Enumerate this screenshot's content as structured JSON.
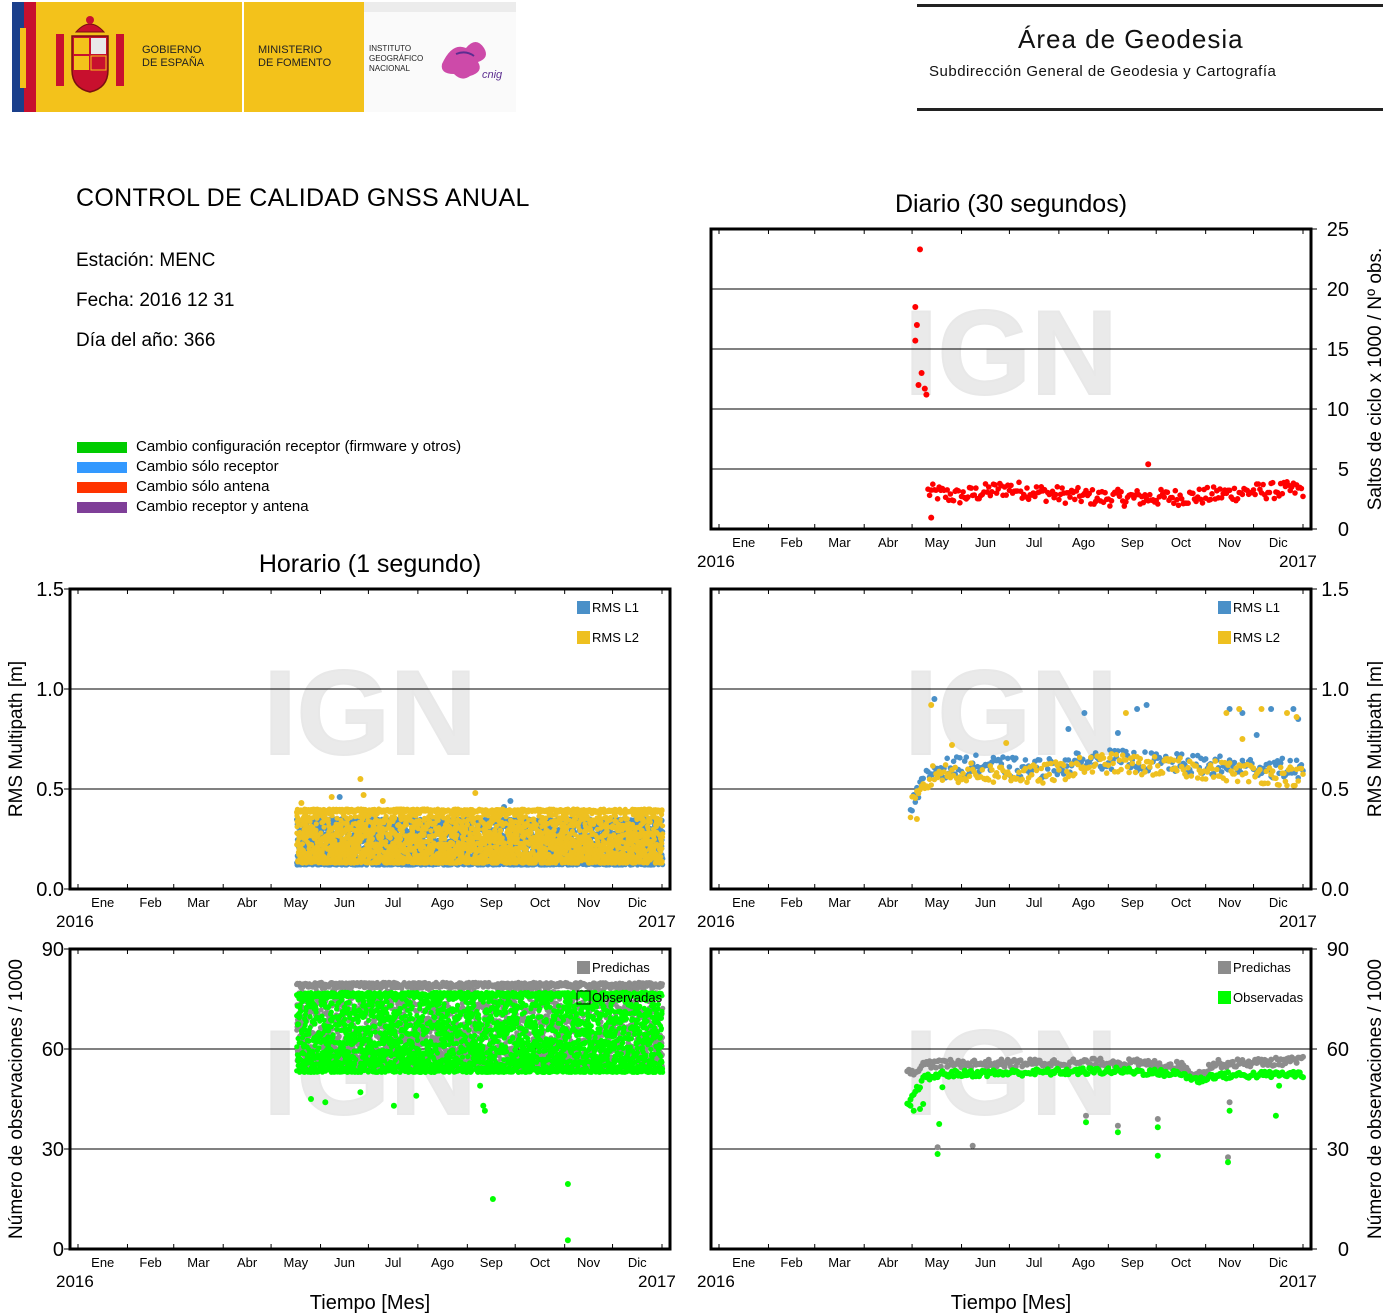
{
  "header": {
    "gobierno": "GOBIERNO\nDE ESPAÑA",
    "ministerio": "MINISTERIO\nDE FOMENTO",
    "instituto": "INSTITUTO\nGEOGRÁFICO\nNACIONAL",
    "cnig_logo": "cnig",
    "area_title": "Área de Geodesia",
    "area_subtitle": "Subdirección General de Geodesia y Cartografía"
  },
  "report": {
    "title": "CONTROL DE CALIDAD GNSS ANUAL",
    "station": "Estación: MENC",
    "date": "Fecha: 2016 12 31",
    "doy": "Día del año: 366"
  },
  "legend": [
    {
      "label": "Cambio configuración receptor (firmware y otros)",
      "color": "#00cc00"
    },
    {
      "label": "Cambio sólo receptor",
      "color": "#3399ff"
    },
    {
      "label": "Cambio sólo antena",
      "color": "#ff3300"
    },
    {
      "label": "Cambio receptor y antena",
      "color": "#7f3f98"
    }
  ],
  "watermark": "IGN",
  "colors": {
    "cycle_slips": "#ff0000",
    "rms_l1": "#4a90c8",
    "rms_l2": "#eec020",
    "predichas": "#8c8c8c",
    "observadas": "#00ff00"
  },
  "months": [
    "Ene",
    "Feb",
    "Mar",
    "Abr",
    "May",
    "Jun",
    "Jul",
    "Ago",
    "Sep",
    "Oct",
    "Nov",
    "Dic"
  ],
  "year_start": "2016",
  "year_end": "2017",
  "chart_data": [
    {
      "id": "daily_slips",
      "type": "scatter",
      "title": "Diario (30 segundos)",
      "ylabel": "Saltos de ciclo x 1000 / Nº obs.",
      "y_axis_side": "right",
      "ylim": [
        0,
        25
      ],
      "yticks": [
        "0",
        "5",
        "10",
        "15",
        "20",
        "25"
      ],
      "x_range_days": [
        0,
        366
      ],
      "series": [
        {
          "color_key": "cycle_slips",
          "outliers": [
            [
              126,
              23.3
            ],
            [
              123,
              18.5
            ],
            [
              124,
              17.0
            ],
            [
              123,
              15.7
            ],
            [
              127,
              13.0
            ],
            [
              125,
              12.0
            ],
            [
              129,
              11.7
            ],
            [
              130,
              11.2
            ],
            [
              133,
              0.95
            ],
            [
              269,
              5.4
            ]
          ],
          "baseline": [
            [
              131,
              3.1
            ],
            [
              150,
              2.7
            ],
            [
              180,
              3.4
            ],
            [
              210,
              2.9
            ],
            [
              240,
              2.6
            ],
            [
              270,
              2.6
            ],
            [
              300,
              2.7
            ],
            [
              330,
              3.1
            ],
            [
              366,
              3.3
            ]
          ],
          "spread": 0.7,
          "start": 131,
          "end": 366
        }
      ]
    },
    {
      "id": "hourly_rms",
      "type": "scatter",
      "title": "Horario (1 segundo)",
      "ylabel": "RMS Multipath [m]",
      "y_axis_side": "left",
      "ylim": [
        0,
        1.5
      ],
      "yticks": [
        "0.0",
        "0.5",
        "1.0",
        "1.5"
      ],
      "x_range_days": [
        0,
        366
      ],
      "series": [
        {
          "name": "RMS L1",
          "color_key": "rms_l1",
          "start": 137,
          "end": 366,
          "range": [
            0.12,
            0.35
          ],
          "outliers": [
            [
              164,
              0.46
            ],
            [
              271,
              0.44
            ],
            [
              267,
              0.41
            ]
          ]
        },
        {
          "name": "RMS L2",
          "color_key": "rms_l2",
          "start": 137,
          "end": 366,
          "range": [
            0.13,
            0.4
          ],
          "outliers": [
            [
              177,
              0.55
            ],
            [
              179,
              0.47
            ],
            [
              159,
              0.46
            ],
            [
              249,
              0.48
            ],
            [
              140,
              0.43
            ],
            [
              191,
              0.44
            ]
          ]
        }
      ]
    },
    {
      "id": "daily_rms",
      "type": "scatter",
      "ylabel": "RMS Multipath [m]",
      "y_axis_side": "right",
      "ylim": [
        0,
        1.5
      ],
      "yticks": [
        "0.0",
        "0.5",
        "1.0",
        "1.5"
      ],
      "x_range_days": [
        0,
        366
      ],
      "series": [
        {
          "name": "RMS L1",
          "color_key": "rms_l1",
          "baseline": [
            [
              120,
              0.43
            ],
            [
              135,
              0.6
            ],
            [
              160,
              0.62
            ],
            [
              200,
              0.6
            ],
            [
              240,
              0.65
            ],
            [
              260,
              0.64
            ],
            [
              300,
              0.62
            ],
            [
              366,
              0.6
            ]
          ],
          "spread": 0.05,
          "start": 120,
          "end": 366,
          "outliers": [
            [
              135,
              0.95
            ],
            [
              219,
              0.8
            ],
            [
              229,
              0.88
            ],
            [
              250,
              0.78
            ],
            [
              262,
              0.9
            ],
            [
              268,
              0.92
            ],
            [
              320,
              0.9
            ],
            [
              328,
              0.88
            ],
            [
              346,
              0.9
            ],
            [
              360,
              0.9
            ],
            [
              363,
              0.85
            ],
            [
              337,
              0.77
            ]
          ]
        },
        {
          "name": "RMS L2",
          "color_key": "rms_l2",
          "baseline": [
            [
              120,
              0.4
            ],
            [
              135,
              0.58
            ],
            [
              160,
              0.58
            ],
            [
              200,
              0.57
            ],
            [
              240,
              0.63
            ],
            [
              260,
              0.62
            ],
            [
              300,
              0.6
            ],
            [
              366,
              0.56
            ]
          ],
          "spread": 0.05,
          "start": 120,
          "end": 366,
          "outliers": [
            [
              133,
              0.92
            ],
            [
              124,
              0.35
            ],
            [
              146,
              0.72
            ],
            [
              255,
              0.88
            ],
            [
              318,
              0.88
            ],
            [
              326,
              0.9
            ],
            [
              340,
              0.9
            ],
            [
              356,
              0.88
            ],
            [
              362,
              0.86
            ],
            [
              180,
              0.73
            ],
            [
              328,
              0.75
            ]
          ]
        }
      ]
    },
    {
      "id": "hourly_obs",
      "type": "scatter",
      "ylabel": "Número de observaciones / 1000",
      "xlabel": "Tiempo [Mes]",
      "y_axis_side": "left",
      "ylim": [
        0,
        90
      ],
      "yticks": [
        "0",
        "30",
        "60",
        "90"
      ],
      "x_range_days": [
        0,
        366
      ],
      "series": [
        {
          "name": "Predichas",
          "color_key": "predichas",
          "start": 137,
          "end": 366,
          "range": [
            54,
            80
          ]
        },
        {
          "name": "Observadas",
          "color_key": "observadas",
          "start": 137,
          "end": 366,
          "range": [
            53,
            77
          ],
          "outliers": [
            [
              307,
              19.5
            ],
            [
              307,
              2.6
            ],
            [
              260,
              15
            ],
            [
              255,
              41.5
            ],
            [
              254,
              43
            ],
            [
              146,
              45
            ],
            [
              155,
              44
            ],
            [
              177,
              47
            ],
            [
              198,
              43
            ],
            [
              212,
              46
            ],
            [
              252,
              49
            ]
          ]
        }
      ]
    },
    {
      "id": "daily_obs",
      "type": "scatter",
      "ylabel": "Número de observaciones / 1000",
      "xlabel": "Tiempo [Mes]",
      "y_axis_side": "right",
      "ylim": [
        0,
        90
      ],
      "yticks": [
        "0",
        "30",
        "60",
        "90"
      ],
      "x_range_days": [
        0,
        366
      ],
      "series": [
        {
          "name": "Predichas",
          "color_key": "predichas",
          "baseline": [
            [
              118,
              52.5
            ],
            [
              130,
              55.5
            ],
            [
              200,
              55.8
            ],
            [
              250,
              56
            ],
            [
              290,
              55
            ],
            [
              300,
              52
            ],
            [
              310,
              55.5
            ],
            [
              366,
              56.5
            ]
          ],
          "spread": 1.2,
          "start": 118,
          "end": 366,
          "outliers": [
            [
              137,
              30.5
            ],
            [
              159,
              31
            ],
            [
              230,
              40
            ],
            [
              250,
              37
            ],
            [
              275,
              39
            ],
            [
              320,
              44
            ],
            [
              319,
              27.5
            ]
          ]
        },
        {
          "name": "Observadas",
          "color_key": "observadas",
          "baseline": [
            [
              118,
              43
            ],
            [
              128,
              51
            ],
            [
              140,
              52.5
            ],
            [
              200,
              53
            ],
            [
              250,
              53.5
            ],
            [
              290,
              52.5
            ],
            [
              300,
              50.5
            ],
            [
              310,
              52
            ],
            [
              366,
              52.5
            ]
          ],
          "spread": 1.0,
          "start": 118,
          "end": 366,
          "outliers": [
            [
              120,
              43
            ],
            [
              122,
              41.5
            ],
            [
              126,
              42
            ],
            [
              128,
              43.5
            ],
            [
              137,
              28.5
            ],
            [
              138,
              37.5
            ],
            [
              140,
              48.5
            ],
            [
              230,
              38
            ],
            [
              250,
              35
            ],
            [
              275,
              36.5
            ],
            [
              275,
              28
            ],
            [
              320,
              41.5
            ],
            [
              319,
              26
            ],
            [
              349,
              40
            ],
            [
              351,
              49
            ]
          ]
        }
      ]
    }
  ]
}
